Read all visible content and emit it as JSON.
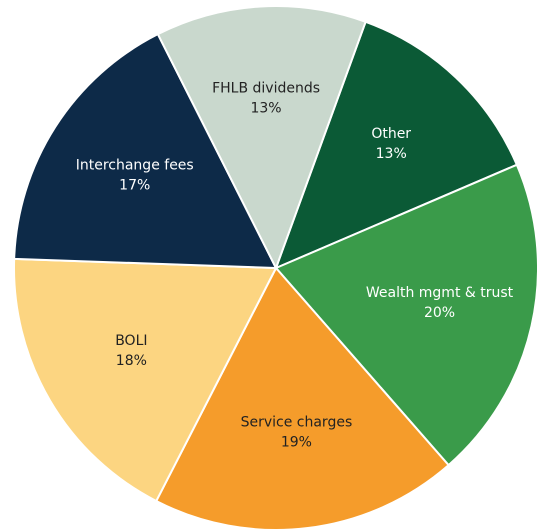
{
  "chart_data": {
    "type": "pie",
    "categories": [
      "Other",
      "Wealth mgmt & trust",
      "Service charges",
      "BOLI",
      "Interchange fees",
      "FHLB dividends"
    ],
    "values": [
      13,
      20,
      19,
      18,
      17,
      13
    ],
    "value_labels": [
      "13%",
      "20%",
      "19%",
      "18%",
      "17%",
      "13%"
    ],
    "colors": [
      "#0b5a36",
      "#3a9b4a",
      "#f59c2b",
      "#fcd581",
      "#0d2a48",
      "#c9d8cd"
    ]
  }
}
